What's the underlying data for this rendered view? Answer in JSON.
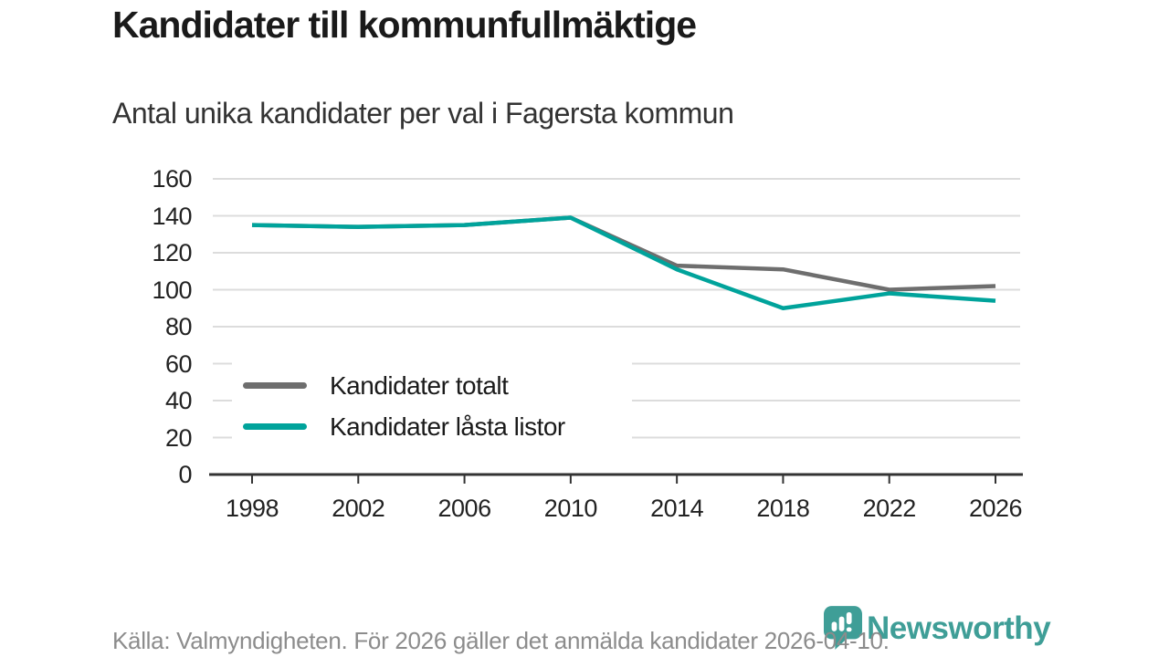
{
  "title": "Kandidater till kommunfullmäktige",
  "subtitle": "Antal unika kandidater per val i Fagersta kommun",
  "source_note": "Källa: Valmyndigheten. För 2026 gäller det anmälda kandidater 2026-04-10.",
  "logo": {
    "name": "Newsworthy"
  },
  "colors": {
    "series_total": "#6e6e6e",
    "series_locked": "#00a39b",
    "logo_teal": "#3f9e97",
    "grid": "#dcdcdc",
    "axis": "#333333",
    "tick_label": "#222222",
    "title_text": "#1a1a1a",
    "subtitle_text": "#333333",
    "footer_text": "#8c8c8c"
  },
  "chart_data": {
    "type": "line",
    "x": [
      "1998",
      "2002",
      "2006",
      "2010",
      "2014",
      "2018",
      "2022",
      "2026"
    ],
    "series": [
      {
        "name": "Kandidater totalt",
        "color": "#6e6e6e",
        "values": [
          135,
          134,
          135,
          139,
          113,
          111,
          100,
          102
        ]
      },
      {
        "name": "Kandidater låsta listor",
        "color": "#00a39b",
        "values": [
          135,
          134,
          135,
          139,
          111,
          90,
          98,
          94
        ]
      }
    ],
    "title": "Kandidater till kommunfullmäktige",
    "subtitle": "Antal unika kandidater per val i Fagersta kommun",
    "xlabel": "",
    "ylabel": "",
    "ylim": [
      0,
      160
    ],
    "ytick_step": 20,
    "grid": true,
    "legend_position": "inside-bottom-left"
  }
}
